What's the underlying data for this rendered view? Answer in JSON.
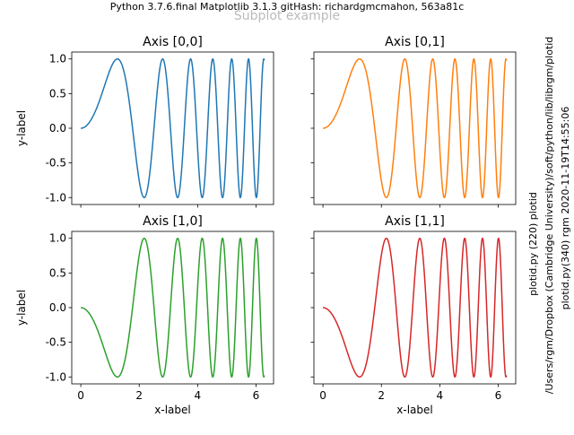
{
  "figure": {
    "header_text": "Python 3.7.6.final  Matplotlib 3.1.3  gitHash: richardgmcmahon, 563a81c",
    "suptitle": "Subplot example",
    "side_text_1": "plotid.py (220) plotid",
    "side_text_2": "/Users/rgm/Dropbox (Cambridge University)/soft/python/lib/librgm/plotid",
    "side_text_3": "plotid.py(340) rgm 2020-11-19T14:55:06"
  },
  "chart_data": [
    {
      "type": "line",
      "title": "Axis [0,0]",
      "xlabel": "",
      "ylabel": "y-label",
      "xlim": [
        -0.31,
        6.6
      ],
      "ylim": [
        -1.1,
        1.1
      ],
      "xticks": [
        0,
        2,
        4,
        6
      ],
      "xtick_labels_visible": false,
      "yticks": [
        -1.0,
        -0.5,
        0.0,
        0.5,
        1.0
      ],
      "ytick_labels": [
        "-1.0",
        "-0.5",
        "0.0",
        "0.5",
        "1.0"
      ],
      "color": "#1f77b4",
      "x_range": [
        0,
        6.2832
      ],
      "function": "sin(x^2)",
      "series": [
        {
          "x_sample": [
            0,
            1.25,
            2.22,
            2.8,
            3.32,
            6.28
          ],
          "y_sample": [
            0,
            1.0,
            -1.0,
            1.0,
            -1.0,
            0.99
          ]
        }
      ]
    },
    {
      "type": "line",
      "title": "Axis [0,1]",
      "xlabel": "",
      "ylabel": "",
      "xlim": [
        -0.31,
        6.6
      ],
      "ylim": [
        -1.1,
        1.1
      ],
      "xticks": [
        0,
        2,
        4,
        6
      ],
      "xtick_labels_visible": false,
      "yticks": [
        -1.0,
        -0.5,
        0.0,
        0.5,
        1.0
      ],
      "ytick_labels_visible": false,
      "color": "#ff7f0e",
      "x_range": [
        0,
        6.2832
      ],
      "function": "sin(x^2)",
      "series": [
        {
          "x_sample": [
            0,
            1.25,
            2.22,
            2.8,
            3.32,
            6.28
          ],
          "y_sample": [
            0,
            1.0,
            -1.0,
            1.0,
            -1.0,
            0.99
          ]
        }
      ]
    },
    {
      "type": "line",
      "title": "Axis [1,0]",
      "xlabel": "x-label",
      "ylabel": "y-label",
      "xlim": [
        -0.31,
        6.6
      ],
      "ylim": [
        -1.1,
        1.1
      ],
      "xticks": [
        0,
        2,
        4,
        6
      ],
      "xtick_labels": [
        "0",
        "2",
        "4",
        "6"
      ],
      "yticks": [
        -1.0,
        -0.5,
        0.0,
        0.5,
        1.0
      ],
      "ytick_labels": [
        "-1.0",
        "-0.5",
        "0.0",
        "0.5",
        "1.0"
      ],
      "color": "#2ca02c",
      "x_range": [
        0,
        6.2832
      ],
      "function": "-sin(x^2)",
      "series": [
        {
          "x_sample": [
            0,
            1.25,
            2.22,
            2.8,
            3.32,
            6.28
          ],
          "y_sample": [
            0,
            -1.0,
            1.0,
            -1.0,
            1.0,
            -0.99
          ]
        }
      ]
    },
    {
      "type": "line",
      "title": "Axis [1,1]",
      "xlabel": "x-label",
      "ylabel": "",
      "xlim": [
        -0.31,
        6.6
      ],
      "ylim": [
        -1.1,
        1.1
      ],
      "xticks": [
        0,
        2,
        4,
        6
      ],
      "xtick_labels": [
        "0",
        "2",
        "4",
        "6"
      ],
      "yticks": [
        -1.0,
        -0.5,
        0.0,
        0.5,
        1.0
      ],
      "ytick_labels_visible": false,
      "color": "#d62728",
      "x_range": [
        0,
        6.2832
      ],
      "function": "-sin(x^2)",
      "series": [
        {
          "x_sample": [
            0,
            1.25,
            2.22,
            2.8,
            3.32,
            6.28
          ],
          "y_sample": [
            0,
            -1.0,
            1.0,
            -1.0,
            1.0,
            -0.99
          ]
        }
      ]
    }
  ]
}
